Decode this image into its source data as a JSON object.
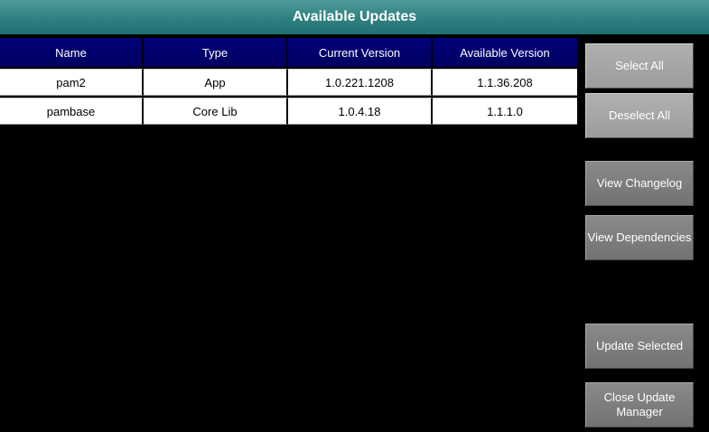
{
  "window": {
    "title": "Available Updates"
  },
  "table": {
    "columns": [
      "Name",
      "Type",
      "Current Version",
      "Available Version"
    ],
    "rows": [
      [
        "pam2",
        "App",
        "1.0.221.1208",
        "1.1.36.208"
      ],
      [
        "pambase",
        "Core Lib",
        "1.0.4.18",
        "1.1.1.0"
      ]
    ]
  },
  "buttons": {
    "select_all": "Select All",
    "deselect_all": "Deselect All",
    "view_changelog": "View Changelog",
    "view_dependencies": "View Dependencies",
    "update_selected": "Update Selected",
    "close_manager": "Close Update Manager"
  },
  "colors": {
    "title_bar": "#2f8181",
    "header_row": "#000070",
    "background": "#000000",
    "button": "#7a7a7a"
  }
}
